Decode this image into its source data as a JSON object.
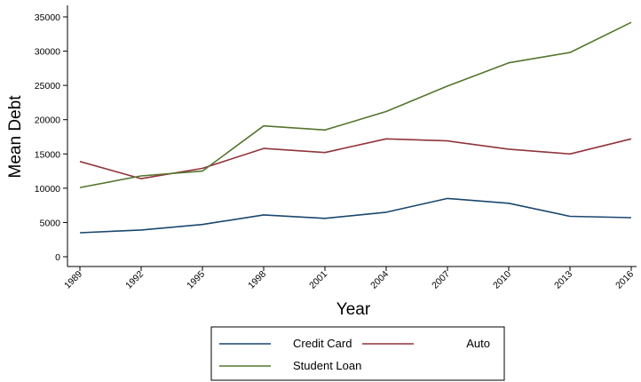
{
  "chart_data": {
    "type": "line",
    "title": "",
    "xlabel": "Year",
    "ylabel": "Mean Debt",
    "x": [
      "1989",
      "1992",
      "1995",
      "1998",
      "2001",
      "2004",
      "2007",
      "2010",
      "2013",
      "2016"
    ],
    "yticks": [
      "0",
      "5000",
      "10000",
      "15000",
      "20000",
      "25000",
      "30000",
      "35000"
    ],
    "ylim": [
      0,
      35000
    ],
    "grid": false,
    "legend_position": "bottom",
    "series": [
      {
        "name": "Credit Card",
        "color": "#1a476f",
        "values": [
          3500,
          3900,
          4700,
          6100,
          5600,
          6500,
          8500,
          7800,
          5900,
          5700
        ]
      },
      {
        "name": "Auto",
        "color": "#90353b",
        "values": [
          13900,
          11400,
          12900,
          15800,
          15200,
          17200,
          16900,
          15700,
          15000,
          17200
        ]
      },
      {
        "name": "Student Loan",
        "color": "#55752f",
        "values": [
          10100,
          11800,
          12500,
          19100,
          18500,
          21200,
          24900,
          28300,
          29800,
          34200
        ]
      }
    ]
  }
}
